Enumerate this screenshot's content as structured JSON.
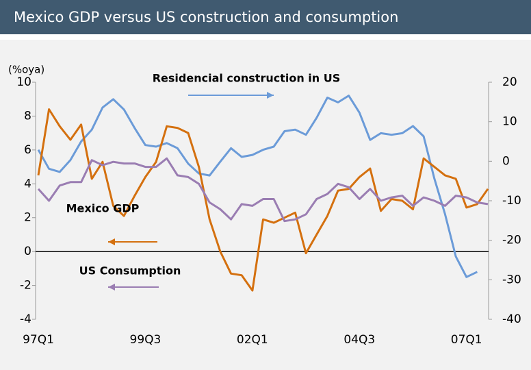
{
  "chart_data": {
    "type": "line",
    "title": "Mexico GDP versus US construction and consumption",
    "y_label": "(%oya)",
    "categories": [
      "97Q1",
      null,
      null,
      null,
      null,
      null,
      null,
      null,
      null,
      null,
      "99Q3",
      null,
      null,
      null,
      null,
      null,
      null,
      null,
      null,
      null,
      "02Q1",
      null,
      null,
      null,
      null,
      null,
      null,
      null,
      null,
      null,
      "04Q3",
      null,
      null,
      null,
      null,
      null,
      null,
      null,
      null,
      null,
      "07Q1",
      null,
      null
    ],
    "ylim": [
      -4,
      10
    ],
    "yticks": [
      -4,
      -2,
      0,
      2,
      4,
      6,
      8,
      10
    ],
    "y2lim": [
      -40,
      20
    ],
    "y2ticks": [
      -40,
      -30,
      -20,
      -10,
      0,
      10,
      20
    ],
    "series": [
      {
        "name": "Residencial construction in US",
        "color": "#6b9bd8",
        "axis": "y2",
        "values": [
          2.9,
          -1.9,
          -2.7,
          0.3,
          5.0,
          8.0,
          13.6,
          15.7,
          13.1,
          8.4,
          4.1,
          3.7,
          4.6,
          3.3,
          -0.6,
          -3.1,
          -3.6,
          -0.1,
          3.3,
          1.1,
          1.6,
          2.9,
          3.7,
          7.6,
          8.0,
          6.7,
          11.0,
          16.1,
          14.9,
          16.6,
          12.3,
          5.4,
          7.1,
          6.7,
          7.1,
          8.9,
          6.3,
          -4.4,
          -13.4,
          -24.1,
          -29.3,
          -28.0,
          null
        ]
      },
      {
        "name": "Mexico GDP",
        "color": "#d4700f",
        "values": [
          4.5,
          8.4,
          7.4,
          6.6,
          7.5,
          4.3,
          5.3,
          2.7,
          2.1,
          3.3,
          4.4,
          5.3,
          7.4,
          7.3,
          7.0,
          5.0,
          1.9,
          0.0,
          -1.3,
          -1.4,
          -2.3,
          1.9,
          1.7,
          2.0,
          2.3,
          -0.1,
          1.0,
          2.1,
          3.6,
          3.7,
          4.4,
          4.9,
          2.4,
          3.1,
          3.0,
          2.5,
          5.5,
          5.0,
          4.5,
          4.3,
          2.6,
          2.8,
          3.7
        ]
      },
      {
        "name": "US Consumption",
        "color": "#9a7db2",
        "values": [
          3.7,
          3.0,
          3.9,
          4.1,
          4.1,
          5.4,
          5.1,
          5.3,
          5.2,
          5.2,
          5.0,
          5.0,
          5.5,
          4.5,
          4.4,
          4.0,
          2.9,
          2.5,
          1.9,
          2.8,
          2.7,
          3.1,
          3.1,
          1.8,
          1.9,
          2.2,
          3.1,
          3.4,
          4.0,
          3.8,
          3.1,
          3.7,
          3.0,
          3.2,
          3.3,
          2.7,
          3.2,
          3.0,
          2.7,
          3.3,
          3.2,
          2.9,
          2.8
        ]
      }
    ]
  }
}
